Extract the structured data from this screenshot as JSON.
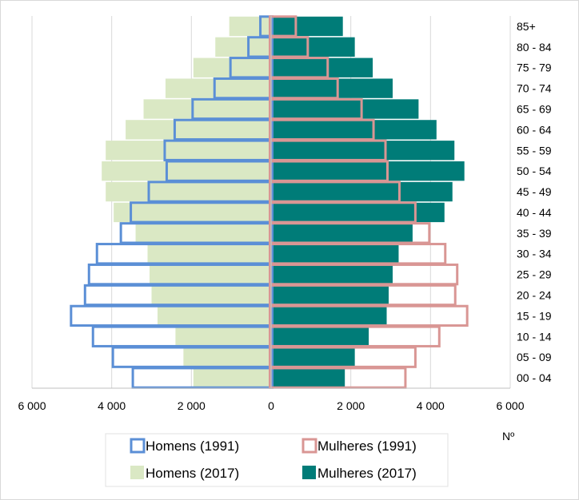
{
  "chart_data": {
    "type": "bar",
    "orientation": "horizontal-pyramid",
    "categories": [
      "00 - 04",
      "05 - 09",
      "10 - 14",
      "15 - 19",
      "20 - 24",
      "25 - 29",
      "30 - 34",
      "35 - 39",
      "40 - 44",
      "45 - 49",
      "50 - 54",
      "55 - 59",
      "60 - 64",
      "65 - 69",
      "70 - 74",
      "75 - 79",
      "80 - 84",
      "85+"
    ],
    "series": [
      {
        "name": "Homens (1991)",
        "side": "left",
        "style": "outline",
        "color": "#5b8fd6",
        "values": [
          3500,
          4000,
          4500,
          5050,
          4700,
          4600,
          4400,
          3800,
          3550,
          3100,
          2650,
          2700,
          2450,
          2000,
          1450,
          1050,
          600,
          300
        ]
      },
      {
        "name": "Mulheres (1991)",
        "side": "right",
        "style": "outline",
        "color": "#d99694",
        "values": [
          3400,
          3650,
          4250,
          4950,
          4650,
          4700,
          4400,
          4000,
          3650,
          3250,
          2950,
          2900,
          2600,
          2300,
          1700,
          1450,
          950,
          650
        ]
      },
      {
        "name": "Homens (2017)",
        "side": "left",
        "style": "fill",
        "color": "#dae8c4",
        "values": [
          1950,
          2200,
          2400,
          2850,
          3000,
          3050,
          3100,
          3400,
          3950,
          4150,
          4250,
          4150,
          3650,
          3200,
          2650,
          1950,
          1400,
          1050
        ]
      },
      {
        "name": "Mulheres (2017)",
        "side": "right",
        "style": "fill",
        "color": "#007c78",
        "values": [
          1850,
          2100,
          2450,
          2900,
          2950,
          3050,
          3200,
          3550,
          4350,
          4550,
          4850,
          4600,
          4150,
          3700,
          3050,
          2550,
          2100,
          1800
        ]
      }
    ],
    "xlabel": "Nº",
    "xlim": [
      -6000,
      6000
    ],
    "xticks": [
      -6000,
      -4000,
      -2000,
      0,
      2000,
      4000,
      6000
    ],
    "xtick_labels": [
      "6 000",
      "4 000",
      "2 000",
      "0",
      "2 000",
      "4 000",
      "6 000"
    ],
    "grid": "vertical",
    "legend_position": "bottom-center"
  }
}
